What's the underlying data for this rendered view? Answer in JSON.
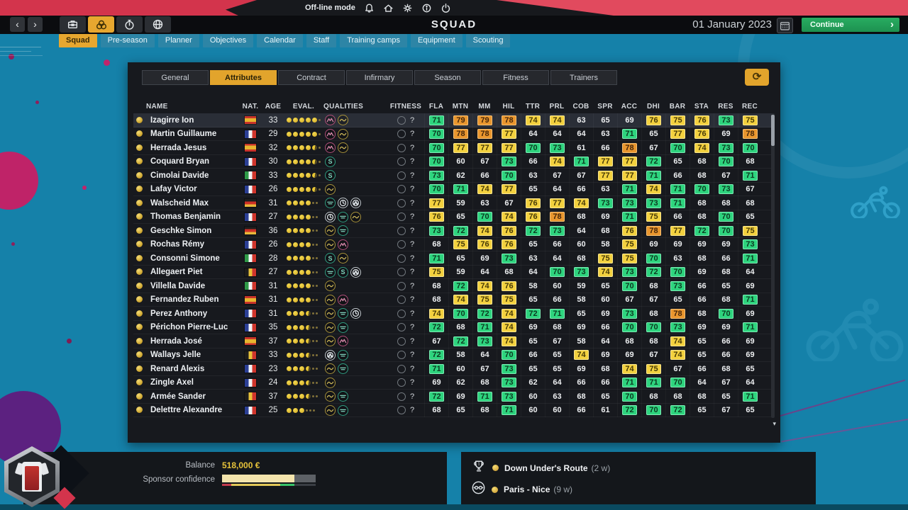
{
  "status_bar": {
    "offline_label": "Off-line mode",
    "icons": [
      "bell-icon",
      "home-icon",
      "gear-icon",
      "info-icon",
      "power-icon"
    ]
  },
  "title_bar": {
    "title": "SQUAD",
    "date": "01 January 2023",
    "continue_label": "Continue"
  },
  "nav_tabs": {
    "active": "Squad",
    "items": [
      "Squad",
      "Pre-season",
      "Planner",
      "Objectives",
      "Calendar",
      "Staff",
      "Training camps",
      "Equipment",
      "Scouting"
    ]
  },
  "sub_tabs": {
    "active": "Attributes",
    "items": [
      "General",
      "Attributes",
      "Contract",
      "Infirmary",
      "Season",
      "Fitness",
      "Trainers"
    ]
  },
  "table": {
    "columns": [
      "NAME",
      "NAT.",
      "AGE",
      "EVAL.",
      "QUALITIES",
      "FITNESS",
      "FLA",
      "MTN",
      "MM",
      "HIL",
      "TTR",
      "PRL",
      "COB",
      "SPR",
      "ACC",
      "DHI",
      "BAR",
      "STA",
      "RES",
      "REC"
    ],
    "fitness_placeholder": "?",
    "stat_colors": {
      "orange_78_plus": "#e9962e",
      "yellow_74_77": "#f3d13f",
      "green_70_73": "#2ed47e"
    },
    "riders": [
      {
        "name": "Izagirre Ion",
        "nat": "es",
        "age": 33,
        "eval": 5,
        "qualities": [
          "mtn",
          "hill"
        ],
        "stats": [
          71,
          79,
          79,
          78,
          74,
          74,
          63,
          65,
          69,
          76,
          75,
          76,
          73,
          75
        ]
      },
      {
        "name": "Martin Guillaume",
        "nat": "fr",
        "age": 29,
        "eval": 5,
        "qualities": [
          "mtn",
          "hill"
        ],
        "stats": [
          70,
          78,
          78,
          77,
          64,
          64,
          64,
          63,
          71,
          65,
          77,
          76,
          69,
          78
        ]
      },
      {
        "name": "Herrada Jesus",
        "nat": "es",
        "age": 32,
        "eval": 4.5,
        "qualities": [
          "mtn",
          "hill"
        ],
        "stats": [
          70,
          77,
          77,
          77,
          70,
          73,
          61,
          66,
          78,
          67,
          70,
          74,
          73,
          70
        ]
      },
      {
        "name": "Coquard Bryan",
        "nat": "fr",
        "age": 30,
        "eval": 4.5,
        "qualities": [
          "spr"
        ],
        "stats": [
          70,
          60,
          67,
          73,
          66,
          74,
          71,
          77,
          77,
          72,
          65,
          68,
          70,
          68
        ]
      },
      {
        "name": "Cimolai Davide",
        "nat": "it",
        "age": 33,
        "eval": 4.5,
        "qualities": [
          "spr"
        ],
        "stats": [
          73,
          62,
          66,
          70,
          63,
          67,
          67,
          77,
          77,
          71,
          66,
          68,
          67,
          71
        ]
      },
      {
        "name": "Lafay Victor",
        "nat": "fr",
        "age": 26,
        "eval": 4.5,
        "qualities": [
          "hill"
        ],
        "stats": [
          70,
          71,
          74,
          77,
          65,
          64,
          66,
          63,
          71,
          74,
          71,
          70,
          73,
          67
        ]
      },
      {
        "name": "Walscheid Max",
        "nat": "de",
        "age": 31,
        "eval": 4,
        "qualities": [
          "flat",
          "tt",
          "cob"
        ],
        "stats": [
          77,
          59,
          63,
          67,
          76,
          77,
          74,
          73,
          73,
          73,
          71,
          68,
          68,
          68
        ]
      },
      {
        "name": "Thomas Benjamin",
        "nat": "fr",
        "age": 27,
        "eval": 4,
        "qualities": [
          "tt",
          "flat",
          "hill"
        ],
        "stats": [
          76,
          65,
          70,
          74,
          76,
          78,
          68,
          69,
          71,
          75,
          66,
          68,
          70,
          65
        ]
      },
      {
        "name": "Geschke Simon",
        "nat": "de",
        "age": 36,
        "eval": 4,
        "qualities": [
          "hill",
          "flat"
        ],
        "stats": [
          73,
          72,
          74,
          76,
          72,
          73,
          64,
          68,
          76,
          78,
          77,
          72,
          70,
          75
        ]
      },
      {
        "name": "Rochas Rémy",
        "nat": "fr",
        "age": 26,
        "eval": 4,
        "qualities": [
          "hill",
          "mtn"
        ],
        "stats": [
          68,
          75,
          76,
          76,
          65,
          66,
          60,
          58,
          75,
          69,
          69,
          69,
          69,
          73
        ]
      },
      {
        "name": "Consonni Simone",
        "nat": "it",
        "age": 28,
        "eval": 4,
        "qualities": [
          "spr",
          "hill"
        ],
        "stats": [
          71,
          65,
          69,
          73,
          63,
          64,
          68,
          75,
          75,
          70,
          63,
          68,
          66,
          71
        ]
      },
      {
        "name": "Allegaert Piet",
        "nat": "be",
        "age": 27,
        "eval": 4,
        "qualities": [
          "flat",
          "spr",
          "cob"
        ],
        "stats": [
          75,
          59,
          64,
          68,
          64,
          70,
          73,
          74,
          73,
          72,
          70,
          69,
          68,
          64
        ]
      },
      {
        "name": "Villella Davide",
        "nat": "it",
        "age": 31,
        "eval": 4,
        "qualities": [
          "hill"
        ],
        "stats": [
          68,
          72,
          74,
          76,
          58,
          60,
          59,
          65,
          70,
          68,
          73,
          66,
          65,
          69
        ]
      },
      {
        "name": "Fernandez Ruben",
        "nat": "es",
        "age": 31,
        "eval": 4,
        "qualities": [
          "hill",
          "mtn"
        ],
        "stats": [
          68,
          74,
          75,
          75,
          65,
          66,
          58,
          60,
          67,
          67,
          65,
          66,
          68,
          71
        ]
      },
      {
        "name": "Perez Anthony",
        "nat": "fr",
        "age": 31,
        "eval": 3.5,
        "qualities": [
          "hill",
          "flat",
          "tt"
        ],
        "stats": [
          74,
          70,
          72,
          74,
          72,
          71,
          65,
          69,
          73,
          68,
          78,
          68,
          70,
          69
        ]
      },
      {
        "name": "Périchon Pierre-Luc",
        "nat": "fr",
        "age": 35,
        "eval": 3.5,
        "qualities": [
          "hill",
          "flat"
        ],
        "stats": [
          72,
          68,
          71,
          74,
          69,
          68,
          69,
          66,
          70,
          70,
          73,
          69,
          69,
          71
        ]
      },
      {
        "name": "Herrada José",
        "nat": "es",
        "age": 37,
        "eval": 3.5,
        "qualities": [
          "hill",
          "mtn"
        ],
        "stats": [
          67,
          72,
          73,
          74,
          65,
          67,
          58,
          64,
          68,
          68,
          74,
          65,
          66,
          69
        ]
      },
      {
        "name": "Wallays Jelle",
        "nat": "be",
        "age": 33,
        "eval": 3.5,
        "qualities": [
          "cob",
          "flat"
        ],
        "stats": [
          72,
          58,
          64,
          70,
          66,
          65,
          74,
          69,
          69,
          67,
          74,
          65,
          66,
          69
        ]
      },
      {
        "name": "Renard Alexis",
        "nat": "fr",
        "age": 23,
        "eval": 3.5,
        "qualities": [
          "hill",
          "flat"
        ],
        "stats": [
          71,
          60,
          67,
          73,
          65,
          65,
          69,
          68,
          74,
          75,
          67,
          66,
          68,
          65
        ]
      },
      {
        "name": "Zingle Axel",
        "nat": "fr",
        "age": 24,
        "eval": 3.5,
        "qualities": [
          "hill"
        ],
        "stats": [
          69,
          62,
          68,
          73,
          62,
          64,
          66,
          66,
          71,
          71,
          70,
          64,
          67,
          64
        ]
      },
      {
        "name": "Armée Sander",
        "nat": "be",
        "age": 37,
        "eval": 3.5,
        "qualities": [
          "hill",
          "flat"
        ],
        "stats": [
          72,
          69,
          71,
          73,
          60,
          63,
          68,
          65,
          70,
          68,
          68,
          68,
          65,
          71
        ]
      },
      {
        "name": "Delettre Alexandre",
        "nat": "fr",
        "age": 25,
        "eval": 3,
        "qualities": [
          "hill",
          "flat"
        ],
        "stats": [
          68,
          65,
          68,
          71,
          60,
          60,
          66,
          61,
          72,
          70,
          72,
          65,
          67,
          65
        ]
      }
    ]
  },
  "footer_left": {
    "balance_label": "Balance",
    "balance_value": "518,000 €",
    "sponsor_label": "Sponsor confidence",
    "sponsor_fill_pct": 77
  },
  "footer_right": {
    "items": [
      {
        "icon": "trophy-icon",
        "label": "Down Under's Route",
        "duration": "(2 w)"
      },
      {
        "icon": "goggles-icon",
        "label": "Paris - Nice",
        "duration": "(9 w)"
      }
    ]
  }
}
